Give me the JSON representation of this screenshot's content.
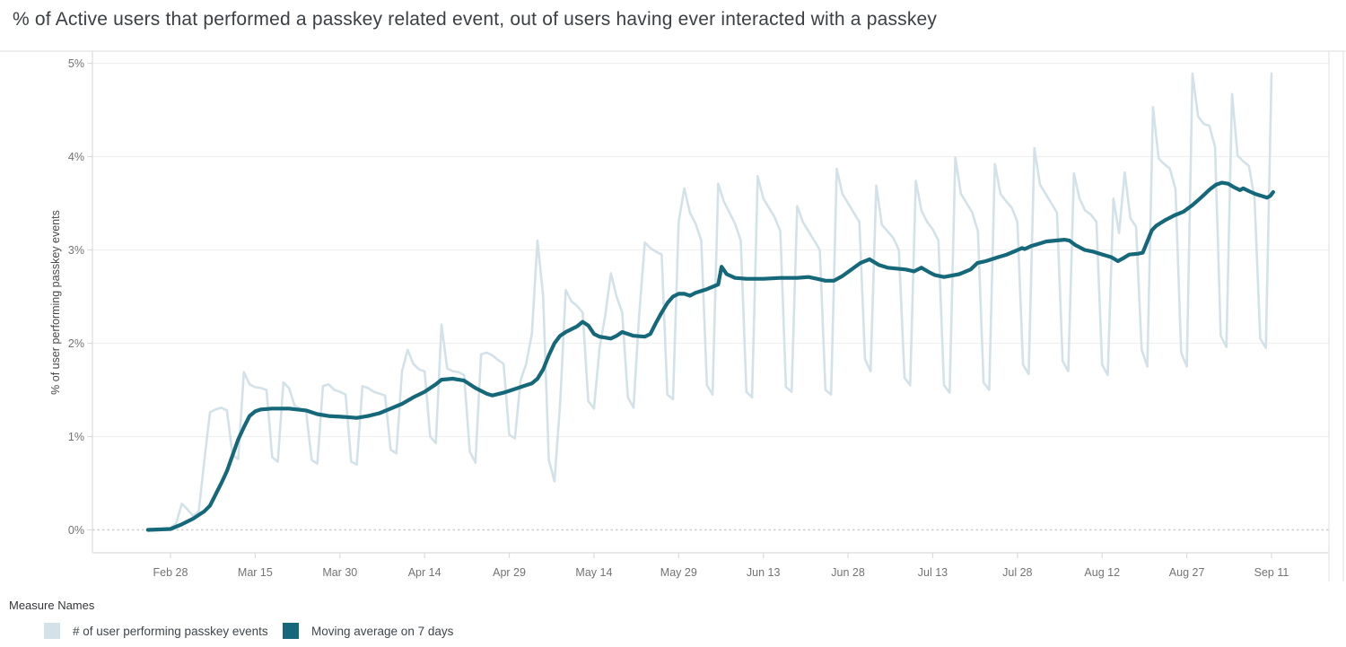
{
  "chart_data": {
    "type": "line",
    "title": "% of Active users that performed a passkey related event, out of users having ever interacted with a passkey",
    "xlabel": "",
    "ylabel": "% of user performing passkey events",
    "x_axis": {
      "tick_labels": [
        "Feb 28",
        "Mar 15",
        "Mar 30",
        "Apr 14",
        "Apr 29",
        "May 14",
        "May 29",
        "Jun 13",
        "Jun 28",
        "Jul 13",
        "Jul 28",
        "Aug 12",
        "Aug 27",
        "Sep 11"
      ],
      "tick_days": [
        0,
        15,
        30,
        45,
        60,
        75,
        90,
        105,
        120,
        135,
        150,
        165,
        180,
        195
      ]
    },
    "y_axis": {
      "tick_labels": [
        "0%",
        "1%",
        "2%",
        "3%",
        "4%",
        "5%"
      ],
      "tick_values": [
        0,
        1,
        2,
        3,
        4,
        5
      ],
      "ylim": [
        0,
        5
      ]
    },
    "grid": true,
    "legend_position": "bottom-left",
    "day_start": -4,
    "series": [
      {
        "name": "# of user performing passkey events",
        "color": "#d3e2e8",
        "unit": "percent",
        "values": [
          0,
          0,
          0,
          0,
          0.02,
          0.07,
          0.28,
          0.22,
          0.15,
          0.2,
          0.75,
          1.26,
          1.29,
          1.31,
          1.28,
          0.8,
          0.76,
          1.69,
          1.56,
          1.53,
          1.52,
          1.5,
          0.78,
          0.73,
          1.58,
          1.52,
          1.33,
          1.3,
          1.28,
          0.75,
          0.71,
          1.54,
          1.56,
          1.5,
          1.48,
          1.45,
          0.73,
          0.7,
          1.54,
          1.52,
          1.48,
          1.46,
          1.44,
          0.86,
          0.82,
          1.7,
          1.93,
          1.78,
          1.72,
          1.7,
          1.0,
          0.93,
          2.2,
          1.73,
          1.7,
          1.69,
          1.66,
          0.84,
          0.72,
          1.88,
          1.9,
          1.87,
          1.82,
          1.78,
          1.02,
          0.98,
          1.6,
          1.78,
          2.1,
          3.1,
          2.5,
          0.75,
          0.52,
          1.35,
          2.57,
          2.45,
          2.4,
          2.33,
          1.38,
          1.3,
          1.95,
          2.3,
          2.75,
          2.5,
          2.33,
          1.42,
          1.31,
          2.3,
          3.08,
          3.02,
          2.98,
          2.95,
          1.45,
          1.4,
          3.3,
          3.66,
          3.4,
          3.28,
          3.1,
          1.55,
          1.45,
          3.71,
          3.52,
          3.4,
          3.28,
          3.1,
          1.48,
          1.42,
          3.79,
          3.55,
          3.45,
          3.35,
          3.2,
          1.53,
          1.48,
          3.47,
          3.3,
          3.2,
          3.1,
          3.0,
          1.5,
          1.45,
          3.87,
          3.6,
          3.5,
          3.4,
          3.3,
          1.83,
          1.7,
          3.69,
          3.27,
          3.2,
          3.13,
          3.0,
          1.63,
          1.55,
          3.74,
          3.42,
          3.3,
          3.22,
          3.1,
          1.55,
          1.47,
          3.99,
          3.6,
          3.5,
          3.4,
          3.2,
          1.58,
          1.5,
          3.92,
          3.6,
          3.52,
          3.45,
          3.3,
          1.77,
          1.67,
          4.09,
          3.7,
          3.6,
          3.5,
          3.4,
          1.81,
          1.7,
          3.82,
          3.55,
          3.42,
          3.38,
          3.3,
          1.77,
          1.66,
          3.55,
          3.18,
          3.83,
          3.34,
          3.25,
          1.93,
          1.75,
          4.53,
          3.98,
          3.92,
          3.87,
          3.65,
          1.9,
          1.75,
          4.89,
          4.43,
          4.35,
          4.33,
          4.1,
          2.08,
          1.96,
          4.67,
          4.01,
          3.95,
          3.9,
          3.55,
          2.05,
          1.95,
          4.89
        ]
      },
      {
        "name": "Moving average on 7 days",
        "color": "#15677a",
        "unit": "percent",
        "points": [
          [
            -4,
            0
          ],
          [
            0,
            0.01
          ],
          [
            2,
            0.06
          ],
          [
            4,
            0.12
          ],
          [
            6,
            0.2
          ],
          [
            7,
            0.26
          ],
          [
            8,
            0.38
          ],
          [
            9,
            0.5
          ],
          [
            10,
            0.63
          ],
          [
            11,
            0.8
          ],
          [
            12,
            0.97
          ],
          [
            13,
            1.1
          ],
          [
            14,
            1.22
          ],
          [
            15,
            1.27
          ],
          [
            16,
            1.29
          ],
          [
            18,
            1.3
          ],
          [
            21,
            1.3
          ],
          [
            24,
            1.28
          ],
          [
            26,
            1.24
          ],
          [
            28,
            1.22
          ],
          [
            31,
            1.21
          ],
          [
            33,
            1.2
          ],
          [
            35,
            1.22
          ],
          [
            37,
            1.25
          ],
          [
            39,
            1.3
          ],
          [
            41,
            1.35
          ],
          [
            43,
            1.42
          ],
          [
            45,
            1.48
          ],
          [
            47,
            1.56
          ],
          [
            48,
            1.61
          ],
          [
            50,
            1.62
          ],
          [
            52,
            1.6
          ],
          [
            54,
            1.52
          ],
          [
            56,
            1.46
          ],
          [
            57,
            1.44
          ],
          [
            59,
            1.47
          ],
          [
            61,
            1.51
          ],
          [
            63,
            1.55
          ],
          [
            64,
            1.57
          ],
          [
            65,
            1.62
          ],
          [
            66,
            1.72
          ],
          [
            67,
            1.87
          ],
          [
            68,
            2.0
          ],
          [
            69,
            2.08
          ],
          [
            70,
            2.12
          ],
          [
            72,
            2.18
          ],
          [
            73,
            2.23
          ],
          [
            74,
            2.19
          ],
          [
            75,
            2.1
          ],
          [
            76,
            2.07
          ],
          [
            78,
            2.05
          ],
          [
            79,
            2.08
          ],
          [
            80,
            2.12
          ],
          [
            82,
            2.08
          ],
          [
            84,
            2.07
          ],
          [
            85,
            2.1
          ],
          [
            86,
            2.22
          ],
          [
            87,
            2.33
          ],
          [
            88,
            2.43
          ],
          [
            89,
            2.5
          ],
          [
            90,
            2.53
          ],
          [
            91,
            2.53
          ],
          [
            92,
            2.51
          ],
          [
            93,
            2.54
          ],
          [
            95,
            2.58
          ],
          [
            97,
            2.63
          ],
          [
            97.6,
            2.82
          ],
          [
            98.5,
            2.74
          ],
          [
            100,
            2.7
          ],
          [
            102,
            2.69
          ],
          [
            105,
            2.69
          ],
          [
            108,
            2.7
          ],
          [
            111,
            2.7
          ],
          [
            113,
            2.71
          ],
          [
            114.5,
            2.69
          ],
          [
            116,
            2.67
          ],
          [
            117.5,
            2.67
          ],
          [
            119,
            2.72
          ],
          [
            120.6,
            2.79
          ],
          [
            122.2,
            2.86
          ],
          [
            123.8,
            2.9
          ],
          [
            125.4,
            2.84
          ],
          [
            127,
            2.81
          ],
          [
            128.6,
            2.8
          ],
          [
            130.2,
            2.79
          ],
          [
            131.7,
            2.77
          ],
          [
            133,
            2.81
          ],
          [
            134.4,
            2.76
          ],
          [
            135.4,
            2.73
          ],
          [
            137,
            2.71
          ],
          [
            139.7,
            2.74
          ],
          [
            141.7,
            2.79
          ],
          [
            142.9,
            2.86
          ],
          [
            144.4,
            2.88
          ],
          [
            146.5,
            2.92
          ],
          [
            148.1,
            2.95
          ],
          [
            149.7,
            2.99
          ],
          [
            150.8,
            3.02
          ],
          [
            151.3,
            3.01
          ],
          [
            152.4,
            3.04
          ],
          [
            154,
            3.07
          ],
          [
            155.1,
            3.09
          ],
          [
            156.7,
            3.1
          ],
          [
            158.3,
            3.11
          ],
          [
            159.2,
            3.1
          ],
          [
            160.3,
            3.05
          ],
          [
            161.9,
            3.0
          ],
          [
            163.5,
            2.98
          ],
          [
            165.1,
            2.95
          ],
          [
            166.7,
            2.92
          ],
          [
            167.8,
            2.88
          ],
          [
            168.7,
            2.91
          ],
          [
            169.8,
            2.95
          ],
          [
            171.4,
            2.96
          ],
          [
            172.2,
            2.97
          ],
          [
            173.8,
            3.21
          ],
          [
            174.6,
            3.26
          ],
          [
            176.2,
            3.32
          ],
          [
            177.8,
            3.37
          ],
          [
            179.4,
            3.41
          ],
          [
            181,
            3.48
          ],
          [
            182.5,
            3.56
          ],
          [
            184.1,
            3.65
          ],
          [
            185.2,
            3.7
          ],
          [
            186.2,
            3.72
          ],
          [
            187.3,
            3.71
          ],
          [
            188.4,
            3.67
          ],
          [
            189.4,
            3.64
          ],
          [
            190,
            3.66
          ],
          [
            191,
            3.63
          ],
          [
            192.1,
            3.6
          ],
          [
            193.2,
            3.58
          ],
          [
            194.2,
            3.56
          ],
          [
            194.8,
            3.58
          ],
          [
            195.3,
            3.62
          ]
        ]
      }
    ]
  },
  "legend": {
    "title": "Measure Names"
  },
  "style": {
    "grid_color": "#f0f0f0",
    "zero_line_color": "#cdcdcd",
    "axis_line_color": "#dcdcdc",
    "border_color": "#e4e4e4",
    "tick_label_color": "#737373"
  }
}
